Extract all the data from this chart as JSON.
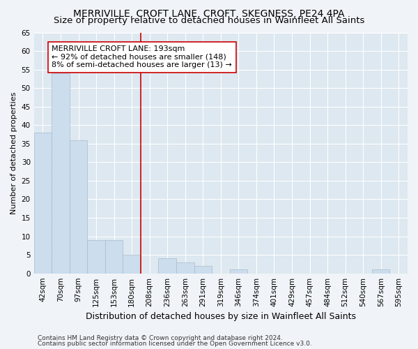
{
  "title": "MERRIVILLE, CROFT LANE, CROFT, SKEGNESS, PE24 4PA",
  "subtitle": "Size of property relative to detached houses in Wainfleet All Saints",
  "xlabel": "Distribution of detached houses by size in Wainfleet All Saints",
  "ylabel": "Number of detached properties",
  "categories": [
    "42sqm",
    "70sqm",
    "97sqm",
    "125sqm",
    "153sqm",
    "180sqm",
    "208sqm",
    "236sqm",
    "263sqm",
    "291sqm",
    "319sqm",
    "346sqm",
    "374sqm",
    "401sqm",
    "429sqm",
    "457sqm",
    "484sqm",
    "512sqm",
    "540sqm",
    "567sqm",
    "595sqm"
  ],
  "values": [
    38,
    54,
    36,
    9,
    9,
    5,
    0,
    4,
    3,
    2,
    0,
    1,
    0,
    0,
    0,
    0,
    0,
    0,
    0,
    1,
    0
  ],
  "bar_color": "#ccdded",
  "bar_edge_color": "#aabbcc",
  "vline_color": "#cc0000",
  "annotation_line1": "MERRIVILLE CROFT LANE: 193sqm",
  "annotation_line2": "← 92% of detached houses are smaller (148)",
  "annotation_line3": "8% of semi-detached houses are larger (13) →",
  "annotation_box_color": "#ffffff",
  "annotation_box_edge": "#cc0000",
  "ylim": [
    0,
    65
  ],
  "yticks": [
    0,
    5,
    10,
    15,
    20,
    25,
    30,
    35,
    40,
    45,
    50,
    55,
    60,
    65
  ],
  "bg_color": "#dde8f0",
  "grid_color": "#ffffff",
  "fig_bg_color": "#f0f4f8",
  "footer1": "Contains HM Land Registry data © Crown copyright and database right 2024.",
  "footer2": "Contains public sector information licensed under the Open Government Licence v3.0.",
  "title_fontsize": 10,
  "subtitle_fontsize": 9.5,
  "xlabel_fontsize": 9,
  "ylabel_fontsize": 8,
  "tick_fontsize": 7.5,
  "annot_fontsize": 8,
  "footer_fontsize": 6.5
}
